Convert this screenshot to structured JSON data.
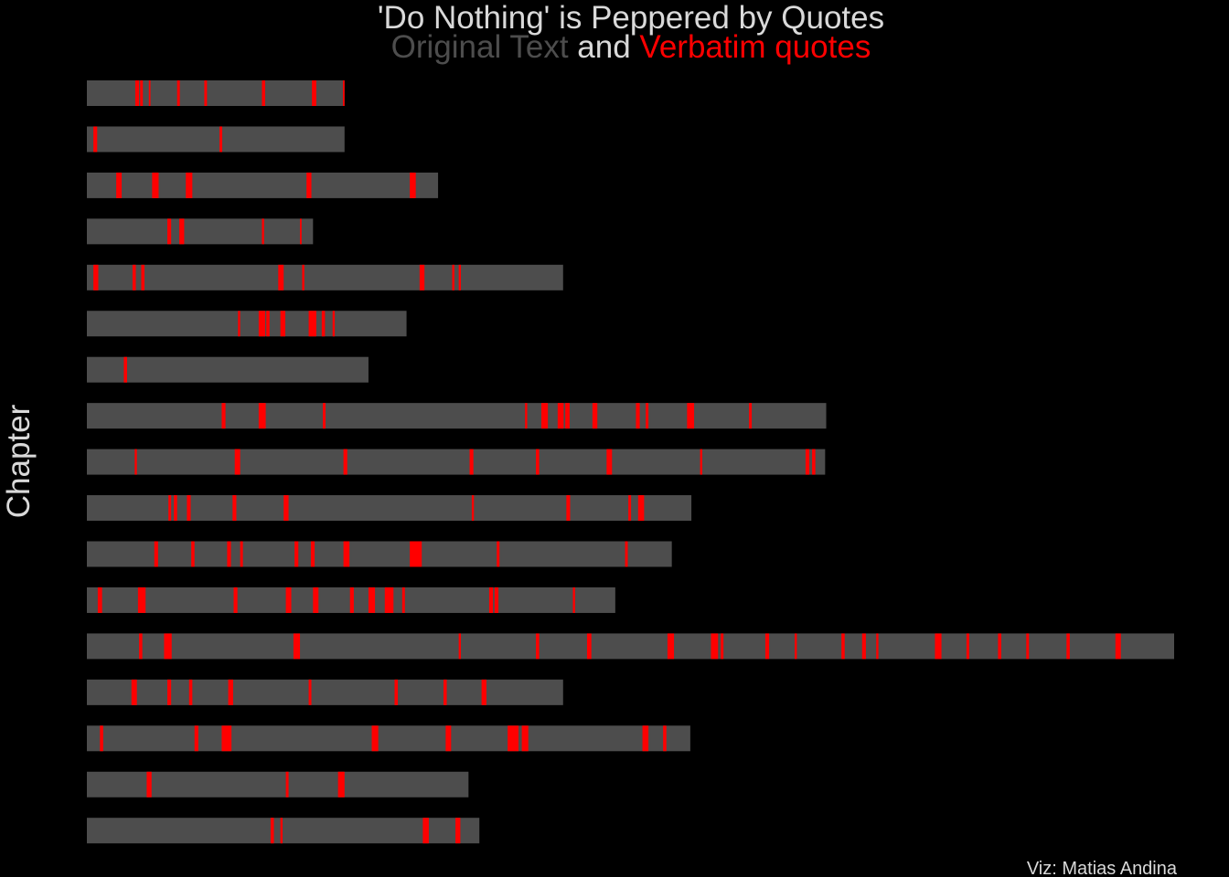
{
  "title": "'Do Nothing' is Peppered by Quotes",
  "subtitle": {
    "part1": "Original Text",
    "part2": " and ",
    "part3": "Verbatim quotes"
  },
  "ylabel": "Chapter",
  "caption": "Viz: Matias Andina",
  "colors": {
    "background": "#000000",
    "original_text": "#4d4d4d",
    "quote": "#ff0000",
    "title": "#d9d9d9",
    "caption": "#d9d9d9",
    "ylabel": "#d9d9d9"
  },
  "chart_data": {
    "type": "bar",
    "orientation": "horizontal stacked segments",
    "grid": false,
    "legend": "none",
    "chapters": [
      {
        "length": 23.7,
        "quotes": [
          [
            4.45,
            0.35
          ],
          [
            4.9,
            0.25
          ],
          [
            5.7,
            0.15
          ],
          [
            8.3,
            0.25
          ],
          [
            10.8,
            0.25
          ],
          [
            16.1,
            0.3
          ],
          [
            20.7,
            0.4
          ],
          [
            23.55,
            0.15
          ]
        ]
      },
      {
        "length": 23.7,
        "quotes": [
          [
            0.6,
            0.35
          ],
          [
            12.2,
            0.25
          ]
        ]
      },
      {
        "length": 32.3,
        "quotes": [
          [
            2.7,
            0.5
          ],
          [
            6.0,
            0.6
          ],
          [
            9.1,
            0.6
          ],
          [
            20.2,
            0.45
          ],
          [
            29.7,
            0.55
          ]
        ]
      },
      {
        "length": 20.8,
        "quotes": [
          [
            7.4,
            0.35
          ],
          [
            8.5,
            0.45
          ],
          [
            16.1,
            0.2
          ],
          [
            19.6,
            0.15
          ]
        ]
      },
      {
        "length": 43.8,
        "quotes": [
          [
            0.6,
            0.45
          ],
          [
            4.2,
            0.3
          ],
          [
            5.0,
            0.3
          ],
          [
            17.6,
            0.5
          ],
          [
            19.8,
            0.2
          ],
          [
            30.6,
            0.45
          ],
          [
            33.6,
            0.2
          ],
          [
            34.2,
            0.2
          ]
        ]
      },
      {
        "length": 29.4,
        "quotes": [
          [
            13.9,
            0.2
          ],
          [
            15.8,
            0.6
          ],
          [
            16.5,
            0.3
          ],
          [
            17.8,
            0.45
          ],
          [
            20.4,
            0.7
          ],
          [
            21.6,
            0.3
          ],
          [
            22.6,
            0.2
          ]
        ]
      },
      {
        "length": 25.9,
        "quotes": [
          [
            3.4,
            0.3
          ]
        ]
      },
      {
        "length": 68.0,
        "quotes": [
          [
            12.4,
            0.35
          ],
          [
            15.8,
            0.65
          ],
          [
            21.7,
            0.25
          ],
          [
            40.3,
            0.2
          ],
          [
            41.8,
            0.6
          ],
          [
            43.3,
            0.55
          ],
          [
            44.0,
            0.4
          ],
          [
            46.5,
            0.45
          ],
          [
            50.5,
            0.35
          ],
          [
            51.4,
            0.25
          ],
          [
            55.2,
            0.65
          ],
          [
            60.9,
            0.25
          ]
        ]
      },
      {
        "length": 67.9,
        "quotes": [
          [
            4.4,
            0.2
          ],
          [
            13.6,
            0.5
          ],
          [
            23.6,
            0.35
          ],
          [
            35.2,
            0.35
          ],
          [
            41.3,
            0.3
          ],
          [
            47.8,
            0.5
          ],
          [
            56.4,
            0.2
          ],
          [
            66.1,
            0.35
          ],
          [
            66.7,
            0.3
          ]
        ]
      },
      {
        "length": 55.6,
        "quotes": [
          [
            7.5,
            0.25
          ],
          [
            8.0,
            0.3
          ],
          [
            9.2,
            0.35
          ],
          [
            13.4,
            0.35
          ],
          [
            18.1,
            0.45
          ],
          [
            35.4,
            0.2
          ],
          [
            44.1,
            0.35
          ],
          [
            49.8,
            0.25
          ],
          [
            50.7,
            0.55
          ]
        ]
      },
      {
        "length": 53.8,
        "quotes": [
          [
            6.2,
            0.35
          ],
          [
            9.6,
            0.3
          ],
          [
            12.9,
            0.35
          ],
          [
            14.1,
            0.25
          ],
          [
            19.1,
            0.35
          ],
          [
            20.6,
            0.35
          ],
          [
            23.6,
            0.55
          ],
          [
            29.7,
            1.1
          ],
          [
            37.7,
            0.25
          ],
          [
            49.5,
            0.25
          ]
        ]
      },
      {
        "length": 48.6,
        "quotes": [
          [
            1.0,
            0.4
          ],
          [
            4.7,
            0.7
          ],
          [
            13.5,
            0.35
          ],
          [
            18.3,
            0.5
          ],
          [
            20.8,
            0.5
          ],
          [
            24.2,
            0.35
          ],
          [
            25.9,
            0.6
          ],
          [
            27.4,
            0.8
          ],
          [
            29.0,
            0.25
          ],
          [
            37.0,
            0.35
          ],
          [
            37.5,
            0.35
          ],
          [
            44.7,
            0.2
          ]
        ]
      },
      {
        "length": 100.0,
        "quotes": [
          [
            4.8,
            0.3
          ],
          [
            7.1,
            0.7
          ],
          [
            19.0,
            0.6
          ],
          [
            34.2,
            0.2
          ],
          [
            41.3,
            0.3
          ],
          [
            46.0,
            0.4
          ],
          [
            53.4,
            0.6
          ],
          [
            57.4,
            0.65
          ],
          [
            58.3,
            0.25
          ],
          [
            62.4,
            0.35
          ],
          [
            65.1,
            0.2
          ],
          [
            69.4,
            0.3
          ],
          [
            71.3,
            0.35
          ],
          [
            72.6,
            0.2
          ],
          [
            78.0,
            0.6
          ],
          [
            80.9,
            0.25
          ],
          [
            83.8,
            0.3
          ],
          [
            86.4,
            0.25
          ],
          [
            90.1,
            0.3
          ],
          [
            94.6,
            0.5
          ]
        ]
      },
      {
        "length": 43.8,
        "quotes": [
          [
            4.1,
            0.5
          ],
          [
            7.4,
            0.35
          ],
          [
            9.4,
            0.3
          ],
          [
            13.0,
            0.45
          ],
          [
            20.4,
            0.25
          ],
          [
            28.3,
            0.3
          ],
          [
            32.8,
            0.3
          ],
          [
            36.3,
            0.45
          ]
        ]
      },
      {
        "length": 55.5,
        "quotes": [
          [
            1.2,
            0.3
          ],
          [
            9.9,
            0.35
          ],
          [
            12.4,
            0.9
          ],
          [
            26.2,
            0.6
          ],
          [
            33.0,
            0.5
          ],
          [
            38.7,
            1.0
          ],
          [
            40.0,
            0.6
          ],
          [
            51.1,
            0.55
          ],
          [
            53.0,
            0.3
          ]
        ]
      },
      {
        "length": 35.1,
        "quotes": [
          [
            5.5,
            0.45
          ],
          [
            18.3,
            0.25
          ],
          [
            23.1,
            0.6
          ]
        ]
      },
      {
        "length": 36.1,
        "quotes": [
          [
            16.9,
            0.3
          ],
          [
            17.8,
            0.2
          ],
          [
            30.9,
            0.55
          ],
          [
            33.9,
            0.45
          ]
        ]
      }
    ]
  }
}
